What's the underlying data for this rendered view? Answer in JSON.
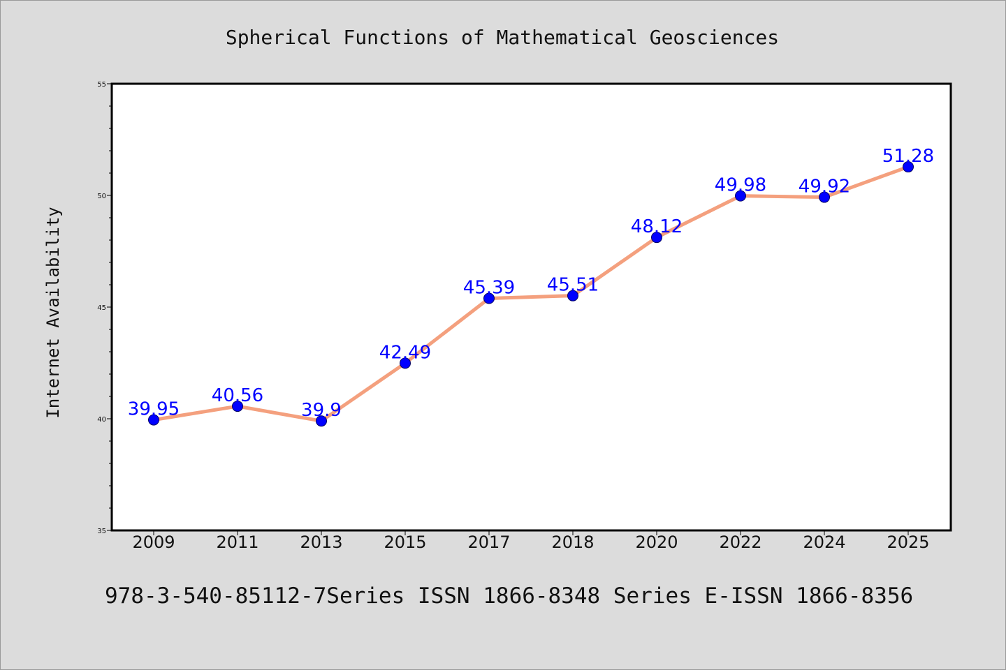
{
  "chart_data": {
    "type": "line",
    "title": "Spherical Functions of Mathematical Geosciences",
    "xlabel": "",
    "ylabel": "Internet Availability",
    "categories": [
      "2009",
      "2011",
      "2013",
      "2015",
      "2017",
      "2018",
      "2020",
      "2022",
      "2024",
      "2025"
    ],
    "series": [
      {
        "values": [
          39.95,
          40.56,
          39.9,
          42.49,
          45.39,
          45.51,
          48.12,
          49.98,
          49.92,
          51.28
        ],
        "data_labels": [
          "39.95",
          "40.56",
          "39.9",
          "42.49",
          "45.39",
          "45.51",
          "48.12",
          "49.98",
          "49.92",
          "51.28"
        ]
      }
    ],
    "ylim": [
      35,
      55
    ],
    "yticks": [
      "35",
      "40",
      "45",
      "50",
      "55"
    ],
    "grid": false,
    "legend": "none",
    "colors": {
      "line": "#f4a07e",
      "marker": "#0000ff",
      "data_label": "#0000ff",
      "background": "#dcdcdc",
      "plot_background": "#ffffff"
    }
  },
  "footer": {
    "text": "978-3-540-85112-7Series ISSN 1866-8348 Series E-ISSN 1866-8356"
  }
}
